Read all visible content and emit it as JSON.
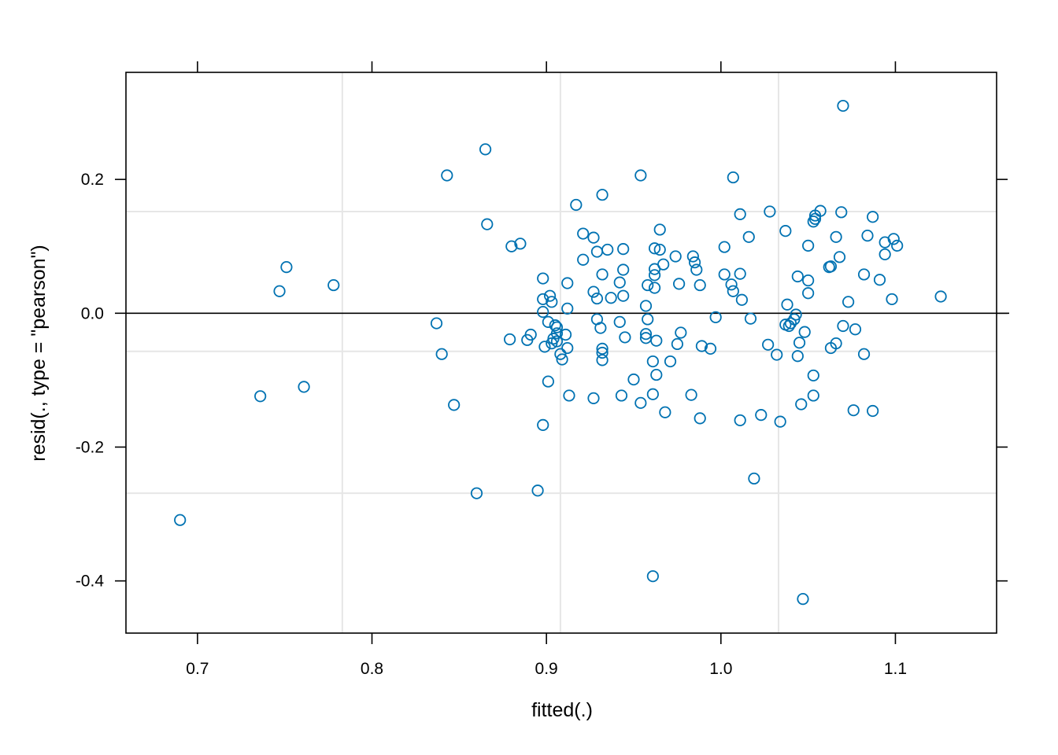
{
  "chart_data": {
    "type": "scatter",
    "xlabel": "fitted(.)",
    "ylabel": "resid(., type = \"pearson\")",
    "xlim": [
      0.659,
      1.158
    ],
    "ylim": [
      -0.478,
      0.36
    ],
    "x_ticks": [
      0.7,
      0.8,
      0.9,
      1.0,
      1.1
    ],
    "x_tick_labels": [
      "0.7",
      "0.8",
      "0.9",
      "1.0",
      "1.1"
    ],
    "y_ticks": [
      -0.4,
      -0.2,
      0.0,
      0.2
    ],
    "y_tick_labels": [
      "-0.4",
      "-0.2",
      "0.0",
      "0.2"
    ],
    "grid": true,
    "grid_x": [
      0.783,
      0.908,
      1.033
    ],
    "grid_y": [
      -0.269,
      -0.057,
      0.152
    ],
    "reference_line_y": 0,
    "point_color": "#0072B2",
    "grid_color": "#e6e6e6",
    "points": [
      [
        0.69,
        -0.309
      ],
      [
        0.736,
        -0.124
      ],
      [
        0.747,
        0.033
      ],
      [
        0.751,
        0.069
      ],
      [
        0.761,
        -0.11
      ],
      [
        0.778,
        0.042
      ],
      [
        0.837,
        -0.015
      ],
      [
        0.84,
        -0.061
      ],
      [
        0.843,
        0.206
      ],
      [
        0.847,
        -0.137
      ],
      [
        0.86,
        -0.269
      ],
      [
        0.865,
        0.245
      ],
      [
        0.866,
        0.133
      ],
      [
        0.879,
        -0.039
      ],
      [
        0.88,
        0.1
      ],
      [
        0.885,
        0.104
      ],
      [
        0.889,
        -0.04
      ],
      [
        0.891,
        -0.032
      ],
      [
        0.895,
        -0.265
      ],
      [
        0.898,
        0.052
      ],
      [
        0.898,
        -0.167
      ],
      [
        0.898,
        0.021
      ],
      [
        0.898,
        0.002
      ],
      [
        0.899,
        -0.05
      ],
      [
        0.901,
        -0.013
      ],
      [
        0.901,
        -0.102
      ],
      [
        0.902,
        0.026
      ],
      [
        0.903,
        0.017
      ],
      [
        0.903,
        -0.045
      ],
      [
        0.904,
        -0.038
      ],
      [
        0.905,
        -0.018
      ],
      [
        0.906,
        -0.021
      ],
      [
        0.906,
        -0.03
      ],
      [
        0.906,
        -0.042
      ],
      [
        0.908,
        -0.061
      ],
      [
        0.909,
        -0.069
      ],
      [
        0.911,
        -0.032
      ],
      [
        0.912,
        0.007
      ],
      [
        0.912,
        0.045
      ],
      [
        0.912,
        -0.052
      ],
      [
        0.913,
        -0.123
      ],
      [
        0.917,
        0.162
      ],
      [
        0.921,
        0.119
      ],
      [
        0.921,
        0.08
      ],
      [
        0.927,
        0.032
      ],
      [
        0.927,
        0.113
      ],
      [
        0.927,
        -0.127
      ],
      [
        0.929,
        -0.009
      ],
      [
        0.929,
        0.022
      ],
      [
        0.929,
        0.092
      ],
      [
        0.931,
        -0.022
      ],
      [
        0.932,
        0.058
      ],
      [
        0.932,
        -0.053
      ],
      [
        0.932,
        -0.059
      ],
      [
        0.932,
        -0.07
      ],
      [
        0.932,
        0.177
      ],
      [
        0.935,
        0.095
      ],
      [
        0.937,
        0.023
      ],
      [
        0.942,
        0.046
      ],
      [
        0.942,
        -0.013
      ],
      [
        0.943,
        -0.123
      ],
      [
        0.944,
        0.026
      ],
      [
        0.944,
        0.065
      ],
      [
        0.944,
        0.096
      ],
      [
        0.945,
        -0.036
      ],
      [
        0.95,
        -0.099
      ],
      [
        0.954,
        0.206
      ],
      [
        0.954,
        -0.134
      ],
      [
        0.957,
        0.011
      ],
      [
        0.957,
        -0.031
      ],
      [
        0.957,
        -0.037
      ],
      [
        0.958,
        -0.009
      ],
      [
        0.958,
        0.042
      ],
      [
        0.961,
        -0.393
      ],
      [
        0.961,
        -0.072
      ],
      [
        0.961,
        -0.121
      ],
      [
        0.962,
        0.097
      ],
      [
        0.962,
        0.066
      ],
      [
        0.962,
        0.057
      ],
      [
        0.962,
        0.038
      ],
      [
        0.963,
        -0.041
      ],
      [
        0.963,
        -0.092
      ],
      [
        0.965,
        0.125
      ],
      [
        0.965,
        0.095
      ],
      [
        0.967,
        0.073
      ],
      [
        0.968,
        -0.148
      ],
      [
        0.971,
        -0.072
      ],
      [
        0.974,
        0.085
      ],
      [
        0.975,
        -0.046
      ],
      [
        0.976,
        0.044
      ],
      [
        0.977,
        -0.029
      ],
      [
        0.983,
        -0.122
      ],
      [
        0.984,
        0.085
      ],
      [
        0.985,
        0.076
      ],
      [
        0.986,
        0.065
      ],
      [
        0.988,
        -0.157
      ],
      [
        0.988,
        0.042
      ],
      [
        0.989,
        -0.049
      ],
      [
        0.994,
        -0.053
      ],
      [
        0.997,
        -0.006
      ],
      [
        1.002,
        0.099
      ],
      [
        1.002,
        0.058
      ],
      [
        1.006,
        0.043
      ],
      [
        1.007,
        0.203
      ],
      [
        1.007,
        0.033
      ],
      [
        1.011,
        0.059
      ],
      [
        1.011,
        0.148
      ],
      [
        1.011,
        -0.16
      ],
      [
        1.012,
        0.02
      ],
      [
        1.016,
        0.114
      ],
      [
        1.017,
        -0.008
      ],
      [
        1.019,
        -0.247
      ],
      [
        1.023,
        -0.152
      ],
      [
        1.027,
        -0.047
      ],
      [
        1.028,
        0.152
      ],
      [
        1.032,
        -0.062
      ],
      [
        1.034,
        -0.162
      ],
      [
        1.037,
        0.123
      ],
      [
        1.037,
        -0.017
      ],
      [
        1.038,
        0.013
      ],
      [
        1.039,
        -0.019
      ],
      [
        1.04,
        -0.015
      ],
      [
        1.042,
        -0.009
      ],
      [
        1.043,
        -0.002
      ],
      [
        1.044,
        -0.064
      ],
      [
        1.044,
        0.055
      ],
      [
        1.045,
        -0.044
      ],
      [
        1.046,
        -0.136
      ],
      [
        1.047,
        -0.427
      ],
      [
        1.048,
        -0.028
      ],
      [
        1.05,
        0.101
      ],
      [
        1.05,
        0.049
      ],
      [
        1.05,
        0.03
      ],
      [
        1.053,
        -0.093
      ],
      [
        1.053,
        0.137
      ],
      [
        1.053,
        -0.123
      ],
      [
        1.054,
        0.146
      ],
      [
        1.054,
        0.141
      ],
      [
        1.057,
        0.153
      ],
      [
        1.062,
        0.069
      ],
      [
        1.063,
        0.07
      ],
      [
        1.063,
        -0.052
      ],
      [
        1.066,
        -0.045
      ],
      [
        1.066,
        0.114
      ],
      [
        1.068,
        0.084
      ],
      [
        1.069,
        0.151
      ],
      [
        1.07,
        -0.019
      ],
      [
        1.07,
        0.31
      ],
      [
        1.073,
        0.017
      ],
      [
        1.076,
        -0.145
      ],
      [
        1.077,
        -0.024
      ],
      [
        1.082,
        0.058
      ],
      [
        1.082,
        -0.061
      ],
      [
        1.084,
        0.116
      ],
      [
        1.087,
        0.144
      ],
      [
        1.087,
        -0.146
      ],
      [
        1.091,
        0.05
      ],
      [
        1.094,
        0.088
      ],
      [
        1.094,
        0.106
      ],
      [
        1.098,
        0.021
      ],
      [
        1.099,
        0.111
      ],
      [
        1.101,
        0.101
      ],
      [
        1.126,
        0.025
      ]
    ]
  }
}
